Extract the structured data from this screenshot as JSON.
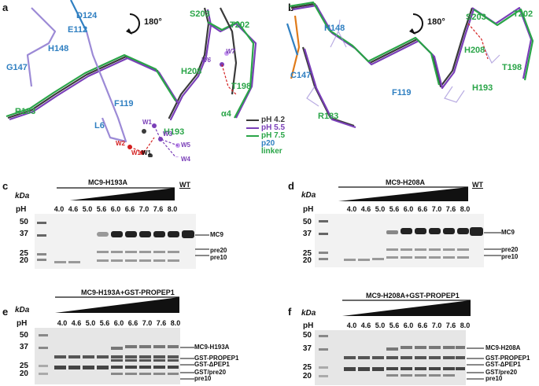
{
  "panels": {
    "a": {
      "letter": "a",
      "rotation": "180°",
      "residues": {
        "D124": "D124",
        "E112": "E112",
        "H148": "H148",
        "G147": "G147",
        "R183": "R183",
        "F119": "F119",
        "L6": "L6",
        "H193": "H193",
        "S203": "S203",
        "T202": "T202",
        "W6": "W6",
        "W7": "W7",
        "H208": "H208",
        "T198": "T198",
        "a4": "α4"
      },
      "waters": {
        "W1a": "W1",
        "W2": "W2",
        "W3": "W3",
        "W4": "W4",
        "W5": "W5",
        "W6b": "W6",
        "W1b": "W1",
        "W1c": "W1"
      },
      "legend": {
        "ph42": "pH 4.2",
        "ph55": "pH 5.5",
        "ph75": "pH 7.5",
        "p20": "p20",
        "linker": "linker"
      }
    },
    "b": {
      "letter": "b",
      "rotation": "180°",
      "residues": {
        "H148": "H148",
        "C147": "C147",
        "R183": "R183",
        "F119": "F119",
        "S203": "S203",
        "T202": "T202",
        "H208": "H208",
        "T198": "T198",
        "H193": "H193"
      }
    },
    "c": {
      "letter": "c",
      "title": "MC9-H193A",
      "wt": "WT",
      "kda": "kDa",
      "ph": "pH",
      "lanes": [
        "4.0",
        "4.6",
        "5.0",
        "5.6",
        "6.0",
        "6.6",
        "7.0",
        "7.6",
        "8.0"
      ],
      "markers": [
        "50",
        "37",
        "25",
        "20"
      ],
      "bands": [
        "MC9",
        "pre20",
        "pre10"
      ]
    },
    "d": {
      "letter": "d",
      "title": "MC9-H208A",
      "wt": "WT",
      "kda": "kDa",
      "ph": "pH",
      "lanes": [
        "4.0",
        "4.6",
        "5.0",
        "5.6",
        "6.0",
        "6.6",
        "7.0",
        "7.6",
        "8.0"
      ],
      "markers": [
        "50",
        "37",
        "25",
        "20"
      ],
      "bands": [
        "MC9",
        "pre20",
        "pre10"
      ]
    },
    "e": {
      "letter": "e",
      "title": "MC9-H193A+GST-PROPEP1",
      "kda": "kDa",
      "ph": "pH",
      "lanes": [
        "4.0",
        "4.6",
        "5.0",
        "5.6",
        "6.0",
        "6.6",
        "7.0",
        "7.6",
        "8.0"
      ],
      "markers": [
        "50",
        "37",
        "25",
        "20"
      ],
      "bands": [
        "MC9-H193A",
        "GST-PROPEP1",
        "GST-ΔPEP1",
        "GST/pre20",
        "pre10"
      ]
    },
    "f": {
      "letter": "f",
      "title": "MC9-H208A+GST-PROPEP1",
      "kda": "kDa",
      "ph": "pH",
      "lanes": [
        "4.0",
        "4.6",
        "5.0",
        "5.6",
        "6.0",
        "6.6",
        "7.0",
        "7.6",
        "8.0"
      ],
      "markers": [
        "50",
        "37",
        "25",
        "20"
      ],
      "bands": [
        "MC9-H208A",
        "GST-PROPEP1",
        "GST-ΔPEP1",
        "GST/pre20",
        "pre10"
      ]
    }
  },
  "colors": {
    "ph42": "#3a3a3a",
    "ph55": "#7a3fb8",
    "ph75": "#e07b1a",
    "p20": "#2f7fc1",
    "linker": "#2aa548",
    "residue_blue": "#2f7fc1",
    "residue_green": "#2aa548",
    "water_red": "#d42020"
  }
}
